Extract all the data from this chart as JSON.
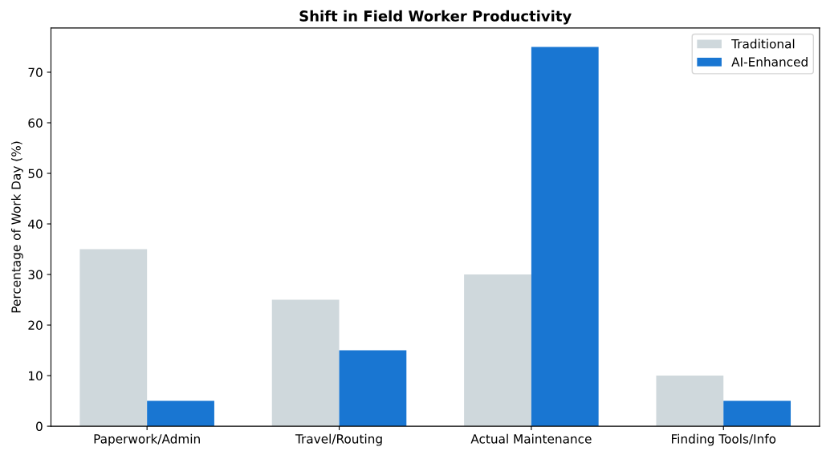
{
  "chart_data": {
    "type": "bar",
    "title": "Shift in Field Worker Productivity",
    "ylabel": "Percentage of Work Day (%)",
    "categories": [
      "Paperwork/Admin",
      "Travel/Routing",
      "Actual Maintenance",
      "Finding Tools/Info"
    ],
    "series": [
      {
        "name": "Traditional",
        "color": "#cfd8dc",
        "values": [
          35,
          25,
          30,
          10
        ]
      },
      {
        "name": "AI-Enhanced",
        "color": "#1976d2",
        "values": [
          5,
          15,
          75,
          5
        ]
      }
    ],
    "ylim": [
      0,
      78.75
    ],
    "yticks": [
      0,
      10,
      20,
      30,
      40,
      50,
      60,
      70
    ],
    "grid": false,
    "legend": "top right"
  }
}
